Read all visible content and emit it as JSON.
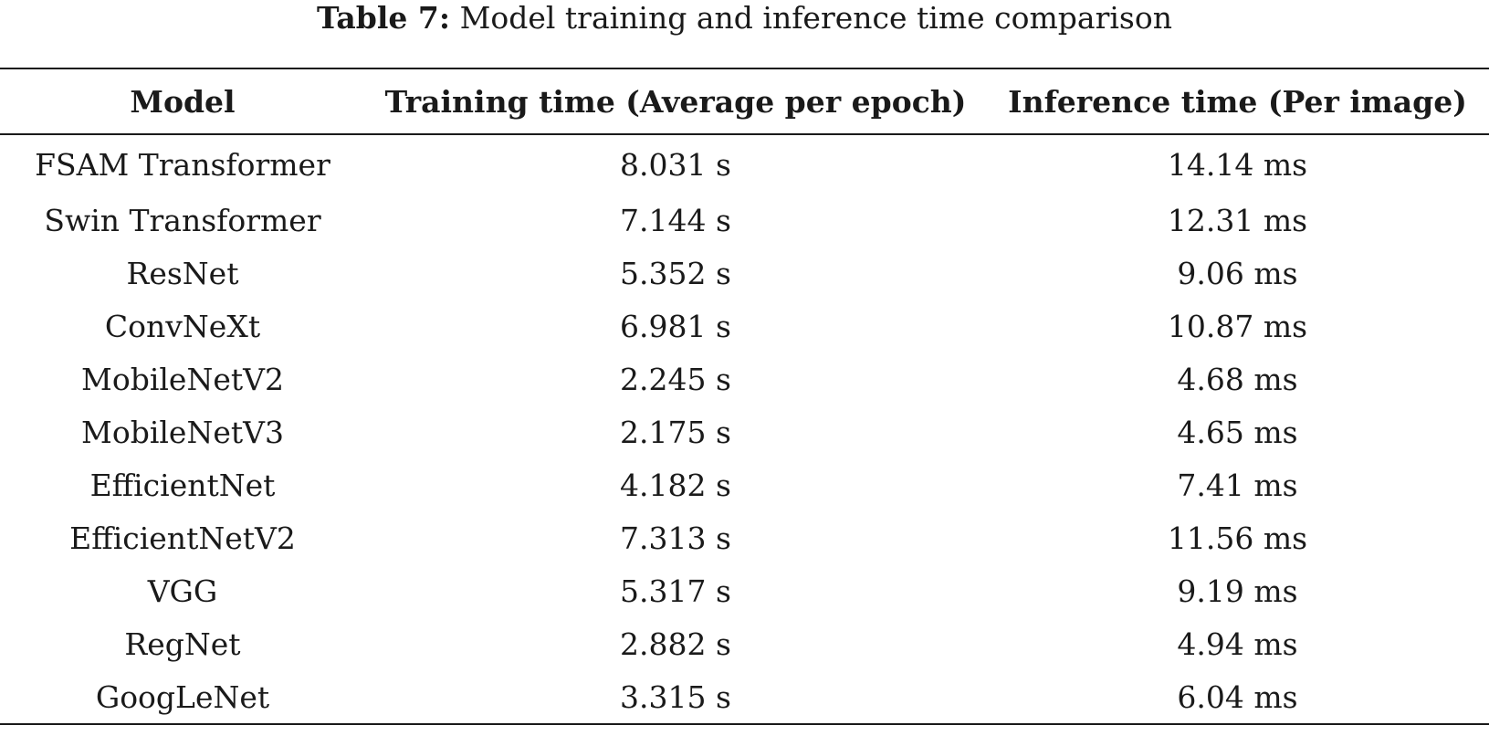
{
  "caption": {
    "label": "Table 7:",
    "text": "Model training and inference time comparison"
  },
  "table": {
    "headers": [
      "Model",
      "Training time (Average per epoch)",
      "Inference time (Per image)"
    ],
    "rows": [
      [
        "FSAM Transformer",
        "8.031 s",
        "14.14 ms"
      ],
      [
        "Swin Transformer",
        "7.144 s",
        "12.31 ms"
      ],
      [
        "ResNet",
        "5.352 s",
        "9.06 ms"
      ],
      [
        "ConvNeXt",
        "6.981 s",
        "10.87 ms"
      ],
      [
        "MobileNetV2",
        "2.245 s",
        "4.68 ms"
      ],
      [
        "MobileNetV3",
        "2.175 s",
        "4.65 ms"
      ],
      [
        "EfficientNet",
        "4.182 s",
        "7.41 ms"
      ],
      [
        "EfficientNetV2",
        "7.313 s",
        "11.56 ms"
      ],
      [
        "VGG",
        "5.317 s",
        "9.19 ms"
      ],
      [
        "RegNet",
        "2.882 s",
        "4.94 ms"
      ],
      [
        "GoogLeNet",
        "3.315 s",
        "6.04 ms"
      ]
    ]
  }
}
